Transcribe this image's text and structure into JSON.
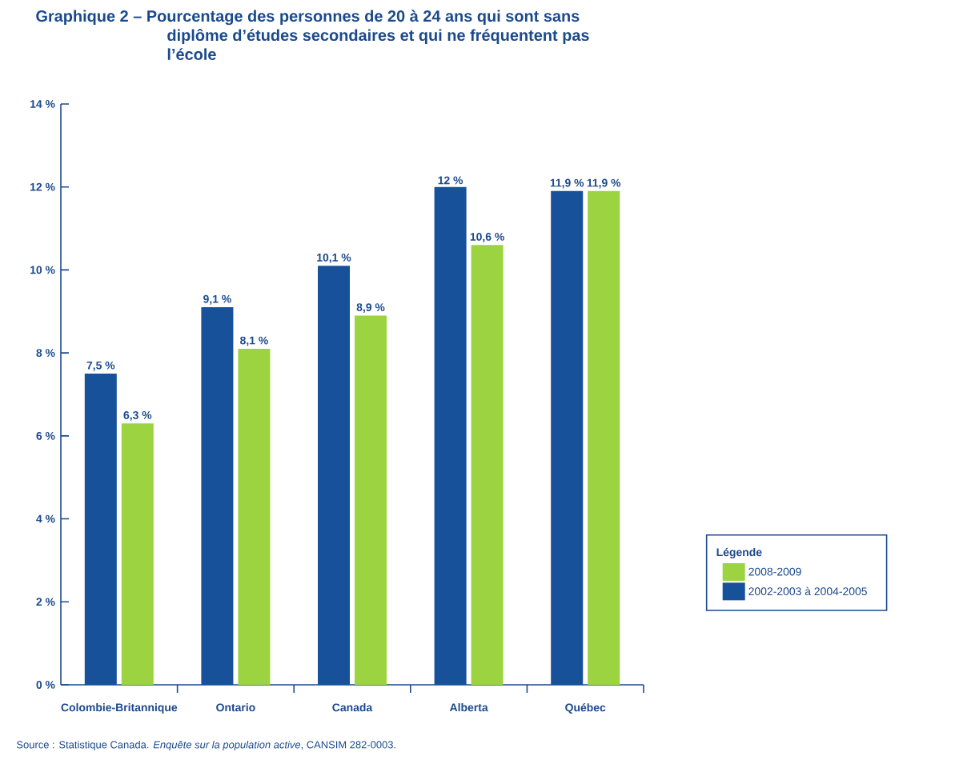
{
  "chart_data": {
    "type": "bar",
    "title": "Graphique 2 – Pourcentage des personnes de 20 à 24 ans qui sont sans diplôme d’études secondaires et qui ne fréquentent pas l’école",
    "categories": [
      "Colombie-Britannique",
      "Ontario",
      "Canada",
      "Alberta",
      "Québec"
    ],
    "series": [
      {
        "name": "2002-2003 à 2004-2005",
        "color": "#16519a",
        "values": [
          7.5,
          9.1,
          10.1,
          12,
          11.9
        ],
        "value_labels": [
          "7,5 %",
          "9,1 %",
          "10,1 %",
          "12 %",
          "11,9 %"
        ]
      },
      {
        "name": "2008-2009",
        "color": "#9bd440",
        "values": [
          6.3,
          8.1,
          8.9,
          10.6,
          11.9
        ],
        "value_labels": [
          "6,3 %",
          "8,1 %",
          "8,9 %",
          "10,6 %",
          "11,9 %"
        ]
      }
    ],
    "ylim": [
      0,
      14
    ],
    "yticks": [
      {
        "value": 0,
        "label": "0 %"
      },
      {
        "value": 2,
        "label": "2 %"
      },
      {
        "value": 4,
        "label": "4 %"
      },
      {
        "value": 6,
        "label": "6 %"
      },
      {
        "value": 8,
        "label": "8 %"
      },
      {
        "value": 10,
        "label": "10 %"
      },
      {
        "value": 12,
        "label": "12 %"
      },
      {
        "value": 14,
        "label": "14 %"
      }
    ],
    "legend": "right",
    "legend_title": "Légende",
    "annotations": [
      "Source : Statistique Canada. *Enquête sur la population active*, CANSIM 282-0003."
    ]
  }
}
